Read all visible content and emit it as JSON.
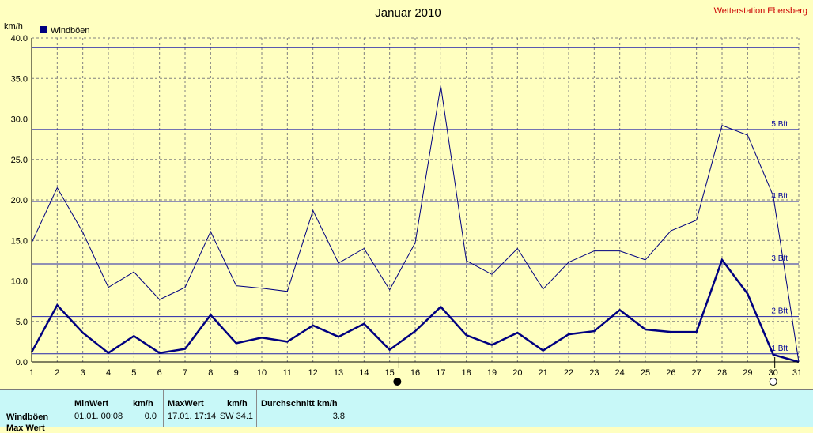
{
  "header": {
    "title": "Januar 2010",
    "station": "Wetterstation Ebersberg",
    "unit": "km/h"
  },
  "legend": {
    "label": "Windböen",
    "color": "#000080"
  },
  "chart_data": {
    "type": "line",
    "title": "Januar 2010",
    "ylabel": "km/h",
    "xlabel": "",
    "xlim": [
      1,
      31
    ],
    "ylim": [
      0,
      40
    ],
    "x_ticks": [
      1,
      2,
      3,
      4,
      5,
      6,
      7,
      8,
      9,
      10,
      11,
      12,
      13,
      14,
      15,
      16,
      17,
      18,
      19,
      20,
      21,
      22,
      23,
      24,
      25,
      26,
      27,
      28,
      29,
      30,
      31
    ],
    "y_ticks": [
      "0.0",
      "5.0",
      "10.0",
      "15.0",
      "20.0",
      "25.0",
      "30.0",
      "35.0",
      "40.0"
    ],
    "grid": true,
    "legend_position": "top-left",
    "series": [
      {
        "name": "Windböen",
        "style": "thick",
        "color": "#000080",
        "x": [
          1,
          2,
          3,
          4,
          5,
          6,
          7,
          8,
          9,
          10,
          11,
          12,
          13,
          14,
          15,
          16,
          17,
          18,
          19,
          20,
          21,
          22,
          23,
          24,
          25,
          26,
          27,
          28,
          29,
          30,
          31
        ],
        "values": [
          1.2,
          7.0,
          3.6,
          1.1,
          3.2,
          1.1,
          1.6,
          5.8,
          2.3,
          3.0,
          2.5,
          4.5,
          3.1,
          4.7,
          1.5,
          3.8,
          6.8,
          3.3,
          2.1,
          3.6,
          1.4,
          3.4,
          3.8,
          6.4,
          4.0,
          3.7,
          3.7,
          12.6,
          8.4,
          0.9,
          0.0
        ]
      },
      {
        "style": "thin",
        "color": "#000080",
        "x": [
          1,
          2,
          3,
          4,
          5,
          6,
          7,
          8,
          9,
          10,
          11,
          12,
          13,
          14,
          15,
          16,
          17,
          18,
          19,
          20,
          21,
          22,
          23,
          24,
          25,
          26,
          27,
          28,
          29,
          30,
          31
        ],
        "values": [
          14.7,
          21.5,
          16.0,
          9.2,
          11.1,
          7.7,
          9.2,
          16.1,
          9.4,
          9.1,
          8.7,
          18.7,
          12.2,
          14.0,
          8.9,
          14.7,
          34.1,
          12.5,
          10.8,
          14.0,
          9.0,
          12.3,
          13.7,
          13.7,
          12.6,
          16.2,
          17.5,
          29.2,
          28.0,
          20.5,
          0.0
        ]
      }
    ],
    "reference_lines": [
      {
        "label": "1 Bft",
        "value": 1.0
      },
      {
        "label": "2 Bft",
        "value": 5.6
      },
      {
        "label": "3 Bft",
        "value": 12.1
      },
      {
        "label": "4 Bft",
        "value": 19.8
      },
      {
        "label": "5 Bft",
        "value": 28.7
      },
      {
        "label": "",
        "value": 38.8
      }
    ],
    "markers": [
      {
        "name": "new-moon-marker",
        "x": 15.3,
        "fill": "#000000"
      },
      {
        "name": "full-moon-marker",
        "x": 30.0,
        "fill": "#ffffff"
      }
    ]
  },
  "stats": {
    "row_label": "Windböen",
    "row2_label": "Max Wert",
    "min": {
      "header": "MinWert",
      "unit": "km/h",
      "datetime": "01.01.  00:08",
      "value": "0.0"
    },
    "max": {
      "header": "MaxWert",
      "unit": "km/h",
      "datetime": "17.01.  17:14",
      "dir_value": "SW 34.1"
    },
    "avg": {
      "header": "Durchschnitt km/h",
      "value": "3.8"
    }
  }
}
